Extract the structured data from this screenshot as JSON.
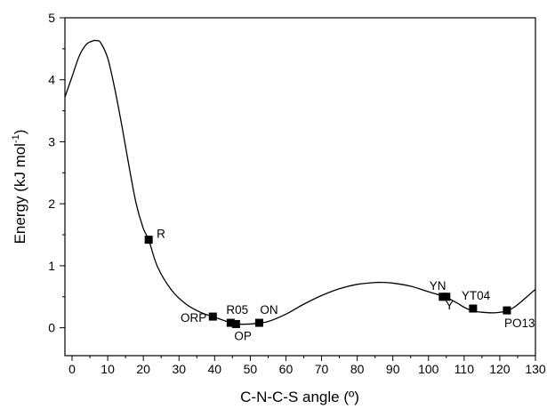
{
  "chart_data": {
    "type": "line",
    "title": "",
    "xlabel": "C-N-C-S angle (º)",
    "ylabel": "Energy (kJ mol",
    "ylabel_sup": "-1",
    "ylabel_tail": ")",
    "xlim": [
      -2,
      130
    ],
    "ylim": [
      -0.45,
      5
    ],
    "xticks": [
      0,
      10,
      20,
      30,
      40,
      50,
      60,
      70,
      80,
      90,
      100,
      110,
      120,
      130
    ],
    "xtick_labels": [
      "0",
      "10",
      "20",
      "30",
      "40",
      "50",
      "60",
      "70",
      "80",
      "90",
      "100",
      "110",
      "120",
      "130"
    ],
    "yticks": [
      0,
      1,
      2,
      3,
      4,
      5
    ],
    "ytick_labels": [
      "0",
      "1",
      "2",
      "3",
      "4",
      "5"
    ],
    "grid": false,
    "legend": "none",
    "curve": {
      "x": [
        -2,
        0,
        2,
        4,
        6,
        7,
        8,
        10,
        12,
        14,
        16,
        18,
        20,
        21.5,
        24,
        28,
        32,
        36,
        39.5,
        44.5,
        46,
        50,
        52.5,
        55,
        60,
        65,
        70,
        75,
        80,
        85,
        87.5,
        90,
        95,
        100,
        104.5,
        108,
        110,
        112.5,
        115,
        118,
        120,
        122,
        124,
        126,
        128,
        130
      ],
      "y": [
        3.72,
        4.05,
        4.38,
        4.57,
        4.63,
        4.63,
        4.6,
        4.35,
        3.85,
        3.25,
        2.6,
        2.0,
        1.6,
        1.42,
        0.98,
        0.6,
        0.38,
        0.25,
        0.18,
        0.08,
        0.06,
        0.06,
        0.08,
        0.1,
        0.22,
        0.38,
        0.52,
        0.63,
        0.7,
        0.73,
        0.73,
        0.72,
        0.67,
        0.58,
        0.5,
        0.4,
        0.33,
        0.27,
        0.25,
        0.24,
        0.25,
        0.27,
        0.33,
        0.42,
        0.52,
        0.62
      ]
    },
    "points": [
      {
        "name": "R",
        "x": 21.5,
        "y": 1.42
      },
      {
        "name": "ORP",
        "x": 39.5,
        "y": 0.18
      },
      {
        "name": "R05",
        "x": 44.5,
        "y": 0.08
      },
      {
        "name": "OP",
        "x": 46,
        "y": 0.06
      },
      {
        "name": "ON",
        "x": 52.5,
        "y": 0.08
      },
      {
        "name": "YN",
        "x": 104,
        "y": 0.5
      },
      {
        "name": "Y",
        "x": 105,
        "y": 0.5
      },
      {
        "name": "YT04",
        "x": 112.5,
        "y": 0.31
      },
      {
        "name": "PO13",
        "x": 122,
        "y": 0.28
      }
    ]
  }
}
